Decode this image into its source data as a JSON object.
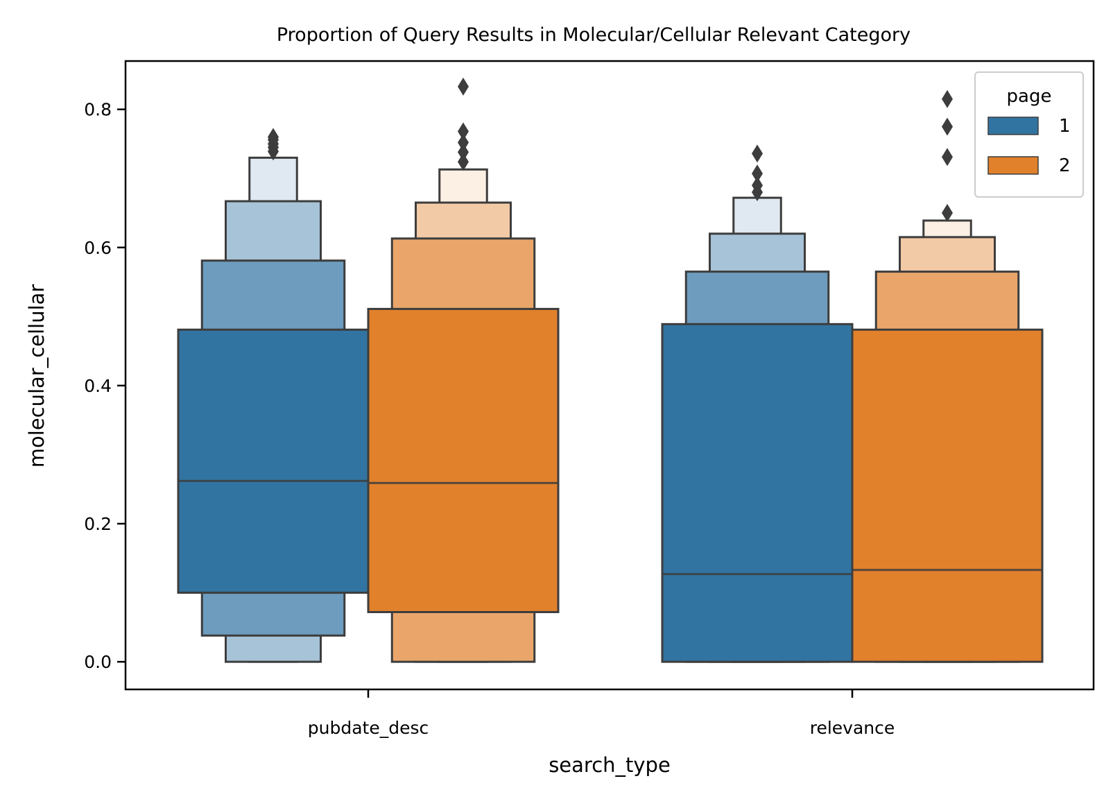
{
  "chart_data": {
    "type": "boxen",
    "title": "Proportion of Query Results in Molecular/Cellular Relevant Category",
    "xlabel": "search_type",
    "ylabel": "molecular_cellular",
    "categories": [
      "pubdate_desc",
      "relevance"
    ],
    "ylim": [
      -0.04,
      0.87
    ],
    "yticks": [
      "0.0",
      "0.2",
      "0.4",
      "0.6",
      "0.8"
    ],
    "ytick_values": [
      0.0,
      0.2,
      0.4,
      0.6,
      0.8
    ],
    "legend": {
      "title": "page",
      "placement": "upper right"
    },
    "grid": false,
    "series": [
      {
        "name": "1",
        "color": "#3274a1",
        "groups": [
          {
            "category": "pubdate_desc",
            "median": 0.262,
            "boxes": [
              {
                "low": 0.1,
                "high": 0.481,
                "color": "#3274a1"
              },
              {
                "low": 0.038,
                "high": 0.581,
                "color": "#6d9cbe"
              },
              {
                "low": 0.0,
                "high": 0.667,
                "color": "#a7c3d8"
              },
              {
                "low": 0.0,
                "high": 0.73,
                "color": "#e0e9f1"
              }
            ],
            "outliers": [
              0.739,
              0.745,
              0.75,
              0.756,
              0.76
            ]
          },
          {
            "category": "relevance",
            "median": 0.127,
            "boxes": [
              {
                "low": 0.0,
                "high": 0.489,
                "color": "#3274a1"
              },
              {
                "low": 0.0,
                "high": 0.565,
                "color": "#6d9cbe"
              },
              {
                "low": 0.0,
                "high": 0.62,
                "color": "#a7c3d8"
              },
              {
                "low": 0.0,
                "high": 0.672,
                "color": "#e0e9f1"
              }
            ],
            "outliers": [
              0.68,
              0.69,
              0.707,
              0.736
            ]
          }
        ]
      },
      {
        "name": "2",
        "color": "#e1812c",
        "groups": [
          {
            "category": "pubdate_desc",
            "median": 0.259,
            "boxes": [
              {
                "low": 0.072,
                "high": 0.511,
                "color": "#e1812c"
              },
              {
                "low": 0.0,
                "high": 0.613,
                "color": "#eaa66a"
              },
              {
                "low": 0.0,
                "high": 0.665,
                "color": "#f3caa6"
              },
              {
                "low": 0.0,
                "high": 0.713,
                "color": "#fcefe3"
              }
            ],
            "outliers": [
              0.724,
              0.738,
              0.752,
              0.768,
              0.833
            ]
          },
          {
            "category": "relevance",
            "median": 0.133,
            "boxes": [
              {
                "low": 0.0,
                "high": 0.481,
                "color": "#e1812c"
              },
              {
                "low": 0.0,
                "high": 0.565,
                "color": "#eaa66a"
              },
              {
                "low": 0.0,
                "high": 0.615,
                "color": "#f3caa6"
              },
              {
                "low": 0.0,
                "high": 0.639,
                "color": "#fcefe3"
              }
            ],
            "outliers": [
              0.65,
              0.731,
              0.775,
              0.815
            ]
          }
        ]
      }
    ]
  }
}
